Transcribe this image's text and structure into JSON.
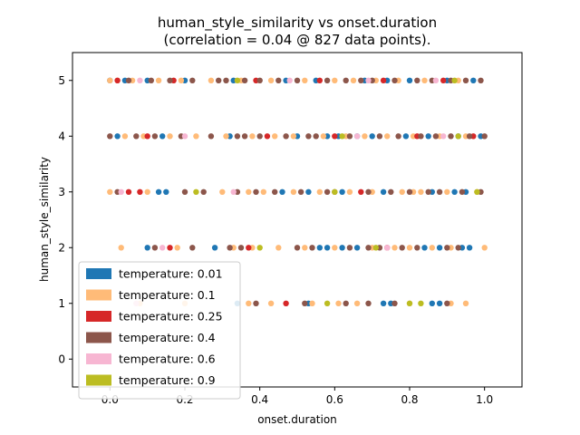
{
  "chart_data": {
    "type": "scatter",
    "title_line1": "human_style_similarity vs onset.duration",
    "title_line2": "(correlation = 0.04 @ 827 data points).",
    "xlabel": "onset.duration",
    "ylabel": "human_style_similarity",
    "xlim": [
      -0.1,
      1.1
    ],
    "ylim": [
      -0.5,
      5.5
    ],
    "x_ticks": [
      "0.0",
      "0.2",
      "0.4",
      "0.6",
      "0.8",
      "1.0"
    ],
    "x_tick_values": [
      0.0,
      0.2,
      0.4,
      0.6,
      0.8,
      1.0
    ],
    "y_ticks": [
      "0",
      "1",
      "2",
      "3",
      "4",
      "5"
    ],
    "y_tick_values": [
      0,
      1,
      2,
      3,
      4,
      5
    ],
    "grid": false,
    "legend_position": "lower-left",
    "series": [
      {
        "name": "temperature: 0.01",
        "color": "#1f77b4",
        "points": [
          [
            0.0,
            5
          ],
          [
            0.04,
            5
          ],
          [
            0.1,
            5
          ],
          [
            0.2,
            5
          ],
          [
            0.33,
            5
          ],
          [
            0.47,
            5
          ],
          [
            0.55,
            5
          ],
          [
            0.68,
            5
          ],
          [
            0.74,
            5
          ],
          [
            0.8,
            5
          ],
          [
            0.9,
            5
          ],
          [
            0.97,
            5
          ],
          [
            0.02,
            4
          ],
          [
            0.14,
            4
          ],
          [
            0.32,
            4
          ],
          [
            0.5,
            4
          ],
          [
            0.58,
            4
          ],
          [
            0.61,
            4
          ],
          [
            0.66,
            4
          ],
          [
            0.7,
            4
          ],
          [
            0.79,
            4
          ],
          [
            0.85,
            4
          ],
          [
            0.93,
            4
          ],
          [
            0.99,
            4
          ],
          [
            0.13,
            3
          ],
          [
            0.15,
            3
          ],
          [
            0.46,
            3
          ],
          [
            0.53,
            3
          ],
          [
            0.62,
            3
          ],
          [
            0.73,
            3
          ],
          [
            0.86,
            3
          ],
          [
            0.92,
            3
          ],
          [
            0.95,
            3
          ],
          [
            0.1,
            2
          ],
          [
            0.28,
            2
          ],
          [
            0.56,
            2
          ],
          [
            0.58,
            2
          ],
          [
            0.62,
            2
          ],
          [
            0.66,
            2
          ],
          [
            0.84,
            2
          ],
          [
            0.88,
            2
          ],
          [
            0.94,
            2
          ],
          [
            0.96,
            2
          ],
          [
            0.34,
            1
          ],
          [
            0.53,
            1
          ],
          [
            0.73,
            1
          ],
          [
            0.75,
            1
          ],
          [
            0.86,
            1
          ],
          [
            0.88,
            1
          ]
        ]
      },
      {
        "name": "temperature: 0.1",
        "color": "#ffbb78",
        "points": [
          [
            0.0,
            5
          ],
          [
            0.02,
            5
          ],
          [
            0.06,
            5
          ],
          [
            0.13,
            5
          ],
          [
            0.19,
            5
          ],
          [
            0.27,
            5
          ],
          [
            0.35,
            5
          ],
          [
            0.43,
            5
          ],
          [
            0.52,
            5
          ],
          [
            0.6,
            5
          ],
          [
            0.65,
            5
          ],
          [
            0.71,
            5
          ],
          [
            0.77,
            5
          ],
          [
            0.84,
            5
          ],
          [
            0.93,
            5
          ],
          [
            0.04,
            4
          ],
          [
            0.09,
            4
          ],
          [
            0.16,
            4
          ],
          [
            0.23,
            4
          ],
          [
            0.31,
            4
          ],
          [
            0.38,
            4
          ],
          [
            0.44,
            4
          ],
          [
            0.49,
            4
          ],
          [
            0.57,
            4
          ],
          [
            0.63,
            4
          ],
          [
            0.68,
            4
          ],
          [
            0.74,
            4
          ],
          [
            0.81,
            4
          ],
          [
            0.88,
            4
          ],
          [
            0.95,
            4
          ],
          [
            0.0,
            3
          ],
          [
            0.1,
            3
          ],
          [
            0.3,
            3
          ],
          [
            0.37,
            3
          ],
          [
            0.41,
            3
          ],
          [
            0.49,
            3
          ],
          [
            0.56,
            3
          ],
          [
            0.64,
            3
          ],
          [
            0.7,
            3
          ],
          [
            0.78,
            3
          ],
          [
            0.81,
            3
          ],
          [
            0.83,
            3
          ],
          [
            0.9,
            3
          ],
          [
            0.98,
            3
          ],
          [
            0.03,
            2
          ],
          [
            0.18,
            2
          ],
          [
            0.33,
            2
          ],
          [
            0.38,
            2
          ],
          [
            0.45,
            2
          ],
          [
            0.52,
            2
          ],
          [
            0.6,
            2
          ],
          [
            0.7,
            2
          ],
          [
            0.76,
            2
          ],
          [
            0.8,
            2
          ],
          [
            0.86,
            2
          ],
          [
            0.91,
            2
          ],
          [
            1.0,
            2
          ],
          [
            0.08,
            1
          ],
          [
            0.2,
            1
          ],
          [
            0.37,
            1
          ],
          [
            0.43,
            1
          ],
          [
            0.54,
            1
          ],
          [
            0.61,
            1
          ],
          [
            0.66,
            1
          ],
          [
            0.8,
            1
          ],
          [
            0.91,
            1
          ],
          [
            0.95,
            1
          ]
        ]
      },
      {
        "name": "temperature: 0.25",
        "color": "#d62728",
        "points": [
          [
            0.02,
            5
          ],
          [
            0.17,
            5
          ],
          [
            0.39,
            5
          ],
          [
            0.56,
            5
          ],
          [
            0.73,
            5
          ],
          [
            0.89,
            5
          ],
          [
            0.1,
            4
          ],
          [
            0.42,
            4
          ],
          [
            0.6,
            4
          ],
          [
            0.82,
            4
          ],
          [
            0.97,
            4
          ],
          [
            0.05,
            3
          ],
          [
            0.08,
            3
          ],
          [
            0.67,
            3
          ],
          [
            0.16,
            2
          ],
          [
            0.37,
            2
          ],
          [
            0.74,
            2
          ],
          [
            0.47,
            1
          ]
        ]
      },
      {
        "name": "temperature: 0.4",
        "color": "#8c564b",
        "points": [
          [
            0.05,
            5
          ],
          [
            0.11,
            5
          ],
          [
            0.16,
            5
          ],
          [
            0.22,
            5
          ],
          [
            0.29,
            5
          ],
          [
            0.31,
            5
          ],
          [
            0.36,
            5
          ],
          [
            0.4,
            5
          ],
          [
            0.45,
            5
          ],
          [
            0.5,
            5
          ],
          [
            0.58,
            5
          ],
          [
            0.63,
            5
          ],
          [
            0.67,
            5
          ],
          [
            0.7,
            5
          ],
          [
            0.76,
            5
          ],
          [
            0.82,
            5
          ],
          [
            0.86,
            5
          ],
          [
            0.91,
            5
          ],
          [
            0.95,
            5
          ],
          [
            0.99,
            5
          ],
          [
            0.0,
            4
          ],
          [
            0.07,
            4
          ],
          [
            0.12,
            4
          ],
          [
            0.19,
            4
          ],
          [
            0.27,
            4
          ],
          [
            0.34,
            4
          ],
          [
            0.36,
            4
          ],
          [
            0.4,
            4
          ],
          [
            0.47,
            4
          ],
          [
            0.53,
            4
          ],
          [
            0.55,
            4
          ],
          [
            0.64,
            4
          ],
          [
            0.72,
            4
          ],
          [
            0.77,
            4
          ],
          [
            0.83,
            4
          ],
          [
            0.87,
            4
          ],
          [
            0.91,
            4
          ],
          [
            0.96,
            4
          ],
          [
            1.0,
            4
          ],
          [
            0.02,
            3
          ],
          [
            0.2,
            3
          ],
          [
            0.25,
            3
          ],
          [
            0.34,
            3
          ],
          [
            0.39,
            3
          ],
          [
            0.44,
            3
          ],
          [
            0.51,
            3
          ],
          [
            0.58,
            3
          ],
          [
            0.6,
            3
          ],
          [
            0.69,
            3
          ],
          [
            0.75,
            3
          ],
          [
            0.8,
            3
          ],
          [
            0.85,
            3
          ],
          [
            0.88,
            3
          ],
          [
            0.94,
            3
          ],
          [
            0.99,
            3
          ],
          [
            0.12,
            2
          ],
          [
            0.22,
            2
          ],
          [
            0.32,
            2
          ],
          [
            0.35,
            2
          ],
          [
            0.5,
            2
          ],
          [
            0.54,
            2
          ],
          [
            0.64,
            2
          ],
          [
            0.69,
            2
          ],
          [
            0.72,
            2
          ],
          [
            0.78,
            2
          ],
          [
            0.82,
            2
          ],
          [
            0.9,
            2
          ],
          [
            0.93,
            2
          ],
          [
            0.39,
            1
          ],
          [
            0.52,
            1
          ],
          [
            0.63,
            1
          ],
          [
            0.69,
            1
          ],
          [
            0.76,
            1
          ],
          [
            0.9,
            1
          ]
        ]
      },
      {
        "name": "temperature: 0.6",
        "color": "#f7b6d2",
        "points": [
          [
            0.08,
            5
          ],
          [
            0.48,
            5
          ],
          [
            0.69,
            5
          ],
          [
            0.87,
            5
          ],
          [
            0.2,
            4
          ],
          [
            0.66,
            4
          ],
          [
            0.89,
            4
          ],
          [
            0.03,
            3
          ],
          [
            0.33,
            3
          ],
          [
            0.14,
            2
          ],
          [
            0.74,
            2
          ],
          [
            0.07,
            1
          ]
        ]
      },
      {
        "name": "temperature: 0.9",
        "color": "#bcbd22",
        "points": [
          [
            0.34,
            5
          ],
          [
            0.92,
            5
          ],
          [
            0.62,
            4
          ],
          [
            0.93,
            4
          ],
          [
            0.23,
            3
          ],
          [
            0.6,
            3
          ],
          [
            0.98,
            3
          ],
          [
            0.4,
            2
          ],
          [
            0.71,
            2
          ],
          [
            0.58,
            1
          ],
          [
            0.8,
            1
          ],
          [
            0.83,
            1
          ]
        ]
      }
    ]
  }
}
